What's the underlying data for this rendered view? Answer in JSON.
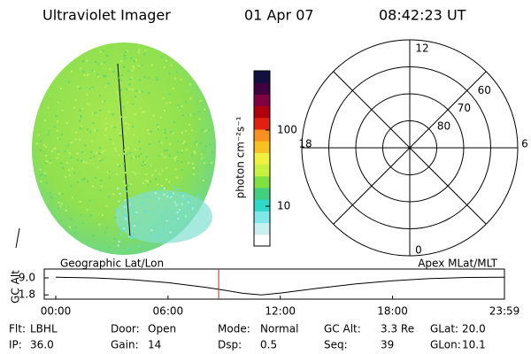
{
  "header": {
    "instrument": "Ultraviolet Imager",
    "date": "01 Apr 07",
    "time": "08:42:23 UT"
  },
  "colorbar": {
    "label": "photon cm⁻²s⁻¹",
    "scale": "log",
    "lim": [
      3,
      600
    ],
    "ticks": [
      10,
      100
    ],
    "colors": [
      "#ffffff",
      "#c8f0f0",
      "#80e8e8",
      "#30d8c8",
      "#40d080",
      "#80e040",
      "#c8f040",
      "#f0f040",
      "#f8c020",
      "#f89020",
      "#e02010",
      "#b00010",
      "#800040",
      "#400040",
      "#101040"
    ]
  },
  "polar": {
    "lat_lim": [
      50,
      90
    ],
    "lat_rings": [
      60,
      70,
      80
    ],
    "mlt_labels": [
      "12",
      "18",
      "6",
      "0"
    ]
  },
  "altitude": {
    "left_label": "Geographic Lat/Lon",
    "right_label": "Apex MLat/MLT",
    "y_label": "GC Alt",
    "ylim": [
      0,
      12
    ],
    "yticks": [
      {
        "value": 9,
        "label": "9.0"
      },
      1.8
    ],
    "xlim": [
      0,
      23.98
    ],
    "xticks": [
      {
        "value": 0,
        "label": "00:00"
      },
      {
        "value": 6,
        "label": "06:00"
      },
      {
        "value": 12,
        "label": "12:00"
      },
      {
        "value": 18,
        "label": "18:00"
      },
      {
        "value": 23.98,
        "label": "23:59"
      }
    ],
    "x": [
      0,
      2,
      4,
      6,
      8,
      9,
      10,
      11,
      12,
      14,
      16,
      18,
      20,
      22,
      23.98
    ],
    "values": [
      9.3,
      9.0,
      8.3,
      7.0,
      5.0,
      3.8,
      2.5,
      1.8,
      2.6,
      4.6,
      6.4,
      7.8,
      8.7,
      9.2,
      9.3
    ],
    "line_color": "#000000",
    "marker": 8.706,
    "marker_color": "#d02020"
  },
  "footer": {
    "rows": [
      [
        [
          "Flt:",
          "LBHL"
        ],
        [
          "Door:",
          "Open"
        ],
        [
          "Mode:",
          "Normal"
        ],
        [
          "GC Alt:",
          "3.3 Re"
        ],
        [
          "GLat:",
          "20.0"
        ]
      ],
      [
        [
          "IP:",
          "36.0"
        ],
        [
          "Gain:",
          "14"
        ],
        [
          "Dsp:",
          "0.5"
        ],
        [
          "Seq:",
          "39"
        ],
        [
          "GLon:",
          "10.1"
        ]
      ]
    ]
  }
}
